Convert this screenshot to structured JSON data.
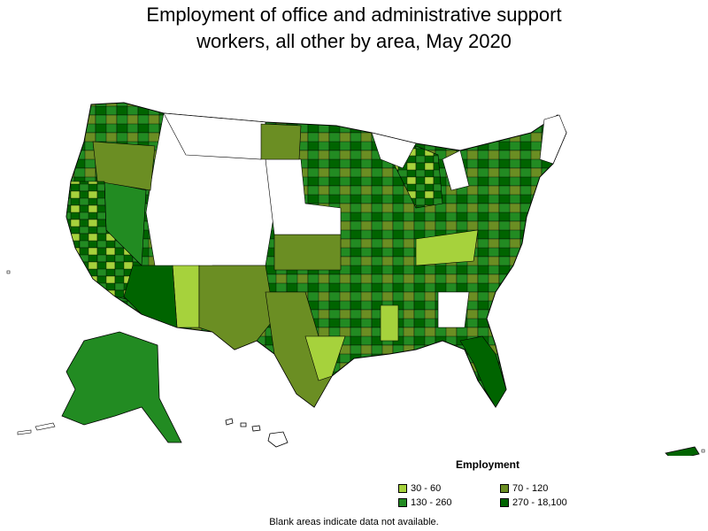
{
  "title_line1": "Employment of office and administrative support",
  "title_line2": "workers, all other by area, May 2020",
  "legend": {
    "title": "Employment",
    "items": [
      {
        "label": "30 - 60",
        "color": "#a6d23c"
      },
      {
        "label": "70 - 120",
        "color": "#6b8e23"
      },
      {
        "label": "130 - 260",
        "color": "#228b22"
      },
      {
        "label": "270 - 18,100",
        "color": "#006400"
      }
    ]
  },
  "note": "Blank areas indicate data not available.",
  "colors": {
    "blank": "#ffffff",
    "border": "#000000"
  }
}
